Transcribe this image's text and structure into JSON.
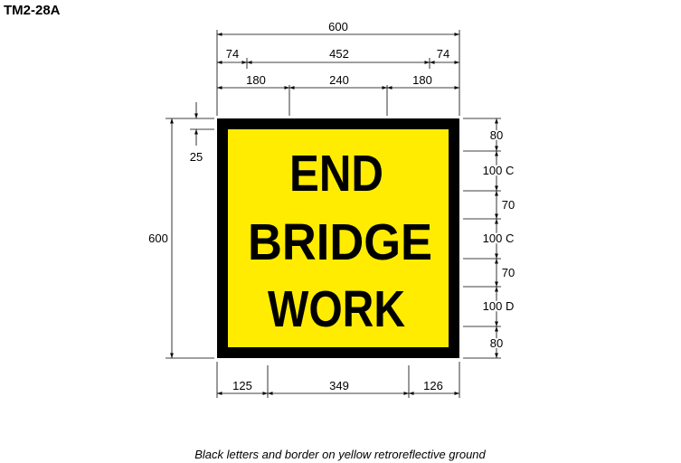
{
  "title": "TM2-28A",
  "sign": {
    "lines": [
      "END",
      "BRIDGE",
      "WORK"
    ],
    "background_color": "#ffec00",
    "border_color": "#000000",
    "text_color": "#000000"
  },
  "dimensions": {
    "overall_width": "600",
    "overall_height": "600",
    "border_offset": "25",
    "top_row1": [
      "74",
      "452",
      "74"
    ],
    "top_row2": [
      "180",
      "240",
      "180"
    ],
    "bottom_row": [
      "125",
      "349",
      "126"
    ],
    "right_column": [
      "80",
      "100 C",
      "70",
      "100 C",
      "70",
      "100 D",
      "80"
    ]
  },
  "caption": "Black letters and border on yellow retroreflective ground"
}
